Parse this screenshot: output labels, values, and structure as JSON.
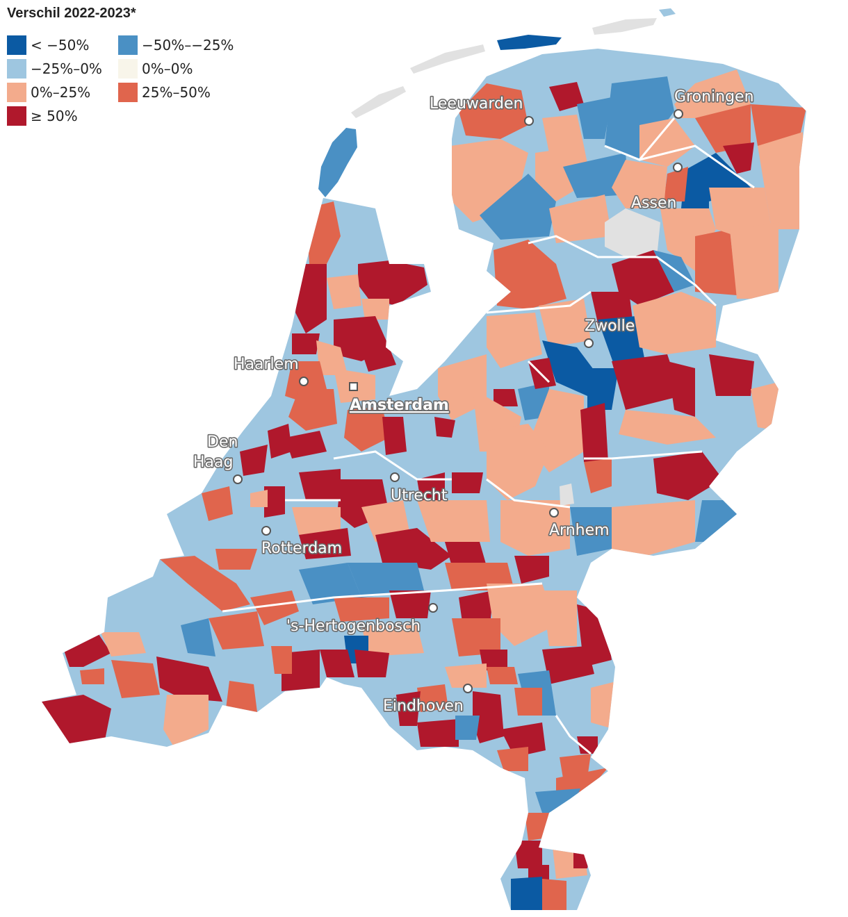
{
  "legend": {
    "title": "Verschil 2022-2023*",
    "items": [
      {
        "label": "< −50%",
        "color": "#0b5aa3"
      },
      {
        "label": "−50%–−25%",
        "color": "#4a90c4"
      },
      {
        "label": "−25%–0%",
        "color": "#9ec6e0"
      },
      {
        "label": "0%–0%",
        "color": "#f8f5ea"
      },
      {
        "label": "0%–25%",
        "color": "#f3ab8c"
      },
      {
        "label": "25%–50%",
        "color": "#e0654d"
      },
      {
        "label": "≥ 50%",
        "color": "#b0182c"
      }
    ],
    "no_data_color": "#e1e1e1"
  },
  "cities": [
    {
      "name": "Leeuwarden",
      "capital": false
    },
    {
      "name": "Groningen",
      "capital": false
    },
    {
      "name": "Assen",
      "capital": false
    },
    {
      "name": "Zwolle",
      "capital": false
    },
    {
      "name": "Haarlem",
      "capital": false
    },
    {
      "name": "Amsterdam",
      "capital": true
    },
    {
      "name": "Den Haag",
      "capital": false
    },
    {
      "name": "Utrecht",
      "capital": false
    },
    {
      "name": "Arnhem",
      "capital": false
    },
    {
      "name": "Rotterdam",
      "capital": false
    },
    {
      "name": "'s-Hertogenbosch",
      "capital": false
    },
    {
      "name": "Eindhoven",
      "capital": false
    }
  ]
}
